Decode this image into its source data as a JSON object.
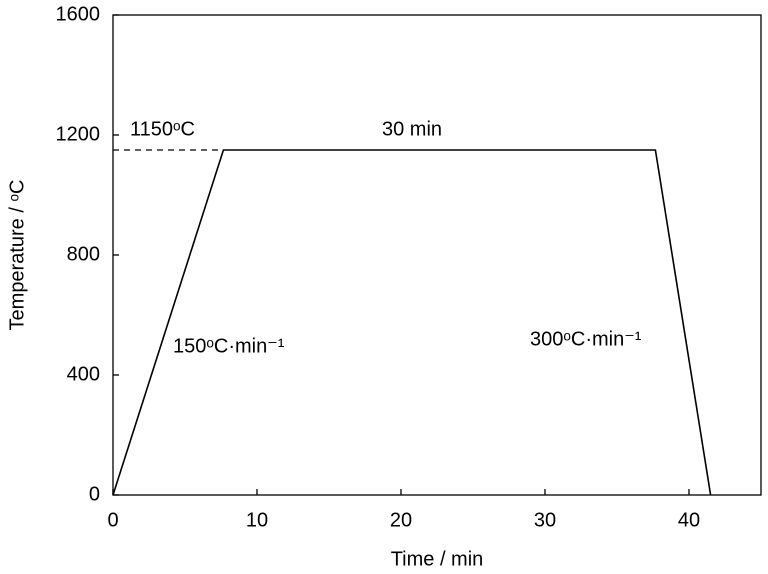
{
  "chart_data": {
    "type": "line",
    "x_label": "Time / min",
    "y_label": "Temperature / ᵒC",
    "x": [
      0,
      7.667,
      37.667,
      41.5
    ],
    "series": [
      {
        "name": "Temperature",
        "color": "#000000",
        "values": [
          0,
          1150,
          1150,
          0
        ]
      }
    ],
    "xlim": [
      0,
      45
    ],
    "xticks": [
      0,
      10,
      20,
      30,
      40
    ],
    "ylim": [
      0,
      1600
    ],
    "yticks": [
      0,
      400,
      800,
      1200,
      1600
    ],
    "grid": false,
    "annotations": [
      "1150ᵒC",
      "30 min",
      "150ᵒC·min⁻¹",
      "300ᵒC·min⁻¹"
    ]
  }
}
